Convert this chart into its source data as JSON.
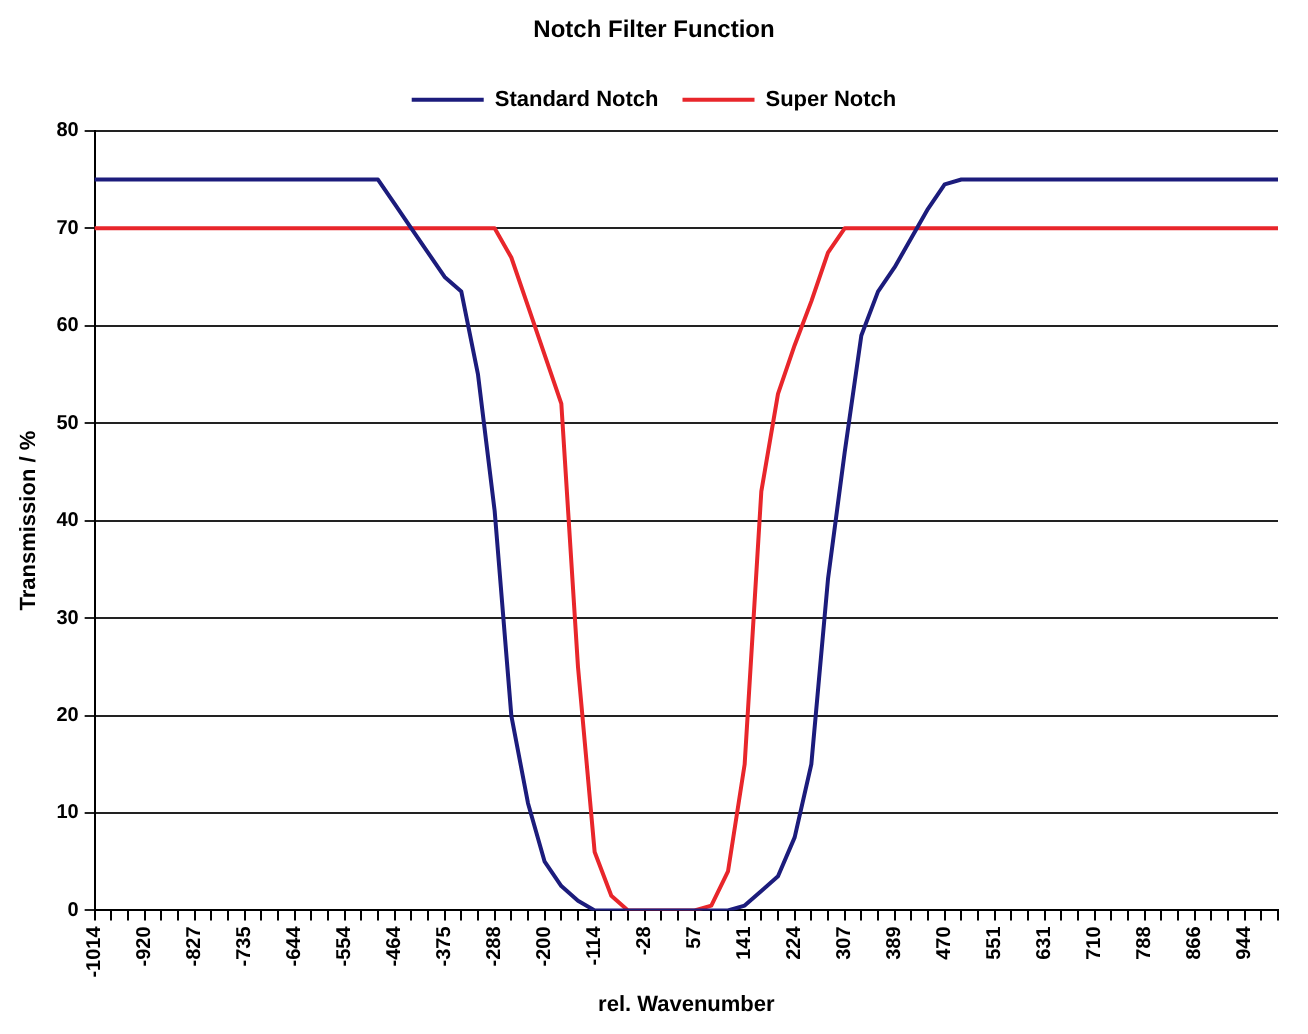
{
  "chart_data": {
    "type": "line",
    "title": "Notch Filter Function",
    "xlabel": "rel. Wavenumber",
    "ylabel": "Transmission / %",
    "categories": [
      "-1014",
      null,
      null,
      "-920",
      null,
      null,
      "-827",
      null,
      null,
      "-735",
      null,
      null,
      "-644",
      null,
      null,
      "-554",
      null,
      null,
      "-464",
      null,
      null,
      "-375",
      null,
      null,
      "-288",
      null,
      null,
      "-200",
      null,
      null,
      "-114",
      null,
      null,
      "-28",
      null,
      null,
      "57",
      null,
      null,
      "141",
      null,
      null,
      "224",
      null,
      null,
      "307",
      null,
      null,
      "389",
      null,
      null,
      "470",
      null,
      null,
      "551",
      null,
      null,
      "631",
      null,
      null,
      "710",
      null,
      null,
      "788",
      null,
      null,
      "866",
      null,
      null,
      "944",
      null,
      null
    ],
    "series": [
      {
        "name": "Standard Notch",
        "color": "#1c1c7c",
        "values": [
          75,
          75,
          75,
          75,
          75,
          75,
          75,
          75,
          75,
          75,
          75,
          75,
          75,
          75,
          75,
          75,
          75,
          75,
          72.5,
          70,
          67.5,
          65,
          63.5,
          55,
          41,
          20,
          11,
          5,
          2.5,
          1,
          0,
          0,
          0,
          0,
          0,
          0,
          0,
          0,
          0,
          0.5,
          2,
          3.5,
          7.5,
          15,
          34,
          47,
          59,
          63.5,
          66,
          69,
          72,
          74.5,
          75,
          75,
          75,
          75,
          75,
          75,
          75,
          75,
          75,
          75,
          75,
          75,
          75,
          75,
          75,
          75,
          75,
          75,
          75,
          75
        ]
      },
      {
        "name": "Super Notch",
        "color": "#e8262b",
        "values": [
          70,
          70,
          70,
          70,
          70,
          70,
          70,
          70,
          70,
          70,
          70,
          70,
          70,
          70,
          70,
          70,
          70,
          70,
          70,
          70,
          70,
          70,
          70,
          70,
          70,
          67,
          62,
          57,
          52,
          25,
          6,
          1.5,
          0,
          0,
          0,
          0,
          0,
          0.5,
          4,
          15,
          43,
          53,
          58,
          62.5,
          67.5,
          70,
          70,
          70,
          70,
          70,
          70,
          70,
          70,
          70,
          70,
          70,
          70,
          70,
          70,
          70,
          70,
          70,
          70,
          70,
          70,
          70,
          70,
          70,
          70,
          70,
          70,
          70
        ]
      }
    ],
    "ylim": [
      0,
      80
    ],
    "yticks": [
      0,
      10,
      20,
      30,
      40,
      50,
      60,
      70,
      80
    ],
    "grid": "y",
    "legend": "top",
    "marker": "none",
    "line_style": "solid"
  }
}
